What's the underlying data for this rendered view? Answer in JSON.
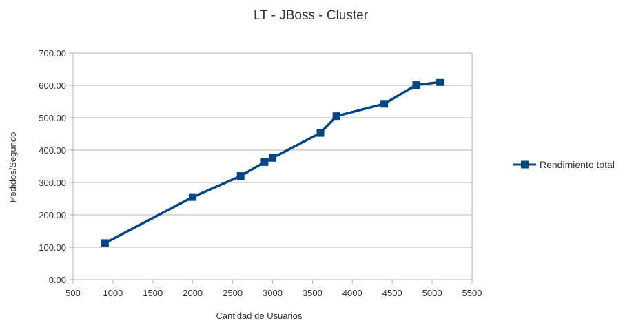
{
  "chart_data": {
    "type": "line",
    "title": "LT - JBoss - Cluster",
    "xlabel": "Cantidad de Usuarios",
    "ylabel": "Pedidos/Segundo",
    "xlim": [
      500,
      5500
    ],
    "ylim": [
      0,
      700
    ],
    "x_ticks": [
      "500",
      "1000",
      "1500",
      "2000",
      "2500",
      "3000",
      "3500",
      "4000",
      "4500",
      "5000",
      "5500"
    ],
    "y_ticks": [
      "0.00",
      "100.00",
      "200.00",
      "300.00",
      "400.00",
      "500.00",
      "600.00",
      "700.00"
    ],
    "grid": "horizontal",
    "legend_position": "right",
    "series": [
      {
        "name": "Rendimiento total",
        "color": "#004586",
        "marker": "square",
        "points": [
          {
            "x": 900,
            "y": 113
          },
          {
            "x": 2000,
            "y": 255
          },
          {
            "x": 2600,
            "y": 320
          },
          {
            "x": 2900,
            "y": 363
          },
          {
            "x": 3000,
            "y": 376
          },
          {
            "x": 3600,
            "y": 453
          },
          {
            "x": 3800,
            "y": 505
          },
          {
            "x": 4400,
            "y": 543
          },
          {
            "x": 4800,
            "y": 601
          },
          {
            "x": 5100,
            "y": 610
          }
        ]
      }
    ]
  }
}
